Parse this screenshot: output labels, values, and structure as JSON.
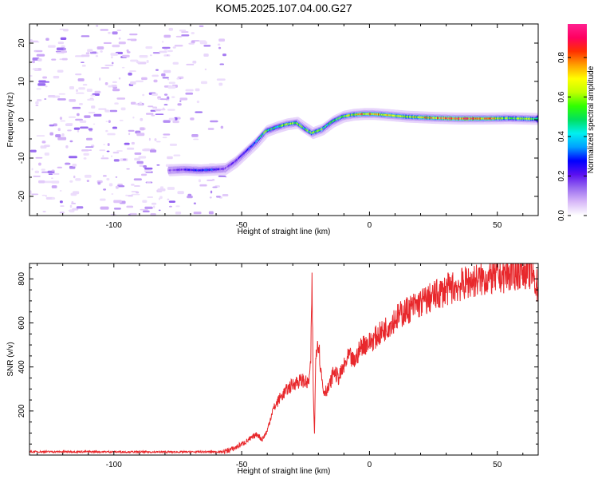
{
  "title": "KOM5.2025.107.04.00.G27",
  "chart_data": [
    {
      "type": "heatmap",
      "xlabel": "Height of straight line (km)",
      "ylabel": "Frequency (Hz)",
      "xlim": [
        -133,
        66
      ],
      "ylim": [
        -25,
        25
      ],
      "xticks": [
        -100,
        -50,
        0,
        50
      ],
      "yticks": [
        -20,
        -10,
        0,
        10,
        20
      ],
      "colorbar": {
        "label": "Normalized spectral amplitude",
        "range": [
          0,
          0.97
        ],
        "ticks": [
          0.0,
          0.2,
          0.4,
          0.6,
          0.8
        ],
        "colors": [
          "#ffffff",
          "#d8b8f8",
          "#9a6cf0",
          "#5a10f0",
          "#0000ff",
          "#00a0ff",
          "#00f0f0",
          "#00e060",
          "#30ff00",
          "#c0ff00",
          "#ffff00",
          "#ffa000",
          "#ff3000",
          "#ff0060",
          "#ff2090"
        ]
      },
      "ridge": {
        "x": [
          -78,
          -72,
          -66,
          -60,
          -56,
          -52,
          -48,
          -44,
          -40,
          -36,
          -32,
          -28,
          -25,
          -22,
          -18,
          -14,
          -10,
          -6,
          -2,
          2,
          8,
          15,
          25,
          35,
          45,
          55,
          66
        ],
        "freq": [
          -13.2,
          -13,
          -13.2,
          -13,
          -12.8,
          -11,
          -8.5,
          -6,
          -3,
          -2,
          -1.2,
          -0.8,
          -2.2,
          -3.5,
          -2.5,
          -0.5,
          0.8,
          1.3,
          1.5,
          1.5,
          1.2,
          0.8,
          0.5,
          0.3,
          0.3,
          0.4,
          0.2
        ],
        "amp": [
          0.15,
          0.22,
          0.3,
          0.28,
          0.18,
          0.2,
          0.25,
          0.35,
          0.55,
          0.45,
          0.62,
          0.55,
          0.5,
          0.58,
          0.6,
          0.5,
          0.55,
          0.65,
          0.78,
          0.72,
          0.68,
          0.62,
          0.75,
          0.9,
          0.8,
          0.6,
          0.55
        ]
      },
      "noise_region": {
        "x_from": -133,
        "x_to": -56,
        "freq_from": -25,
        "freq_to": 25
      }
    },
    {
      "type": "line",
      "xlabel": "Height of straight line (km)",
      "ylabel": "SNR (v/v)",
      "xlim": [
        -133,
        66
      ],
      "ylim": [
        0,
        870
      ],
      "xticks": [
        -100,
        -50,
        0,
        50
      ],
      "yticks": [
        200,
        400,
        600,
        800
      ],
      "series": [
        {
          "color": "#e8282c",
          "x": [
            -133,
            -110,
            -90,
            -70,
            -57,
            -53,
            -50,
            -47,
            -44,
            -42,
            -40,
            -38,
            -35,
            -32,
            -29,
            -26,
            -24,
            -23,
            -22.5,
            -22,
            -21.5,
            -21,
            -20,
            -19,
            -18,
            -16,
            -14,
            -12,
            -10,
            -8,
            -6,
            -3,
            0,
            5,
            10,
            15,
            20,
            25,
            30,
            35,
            40,
            45,
            50,
            55,
            60,
            63,
            66
          ],
          "y": [
            15,
            15,
            14,
            14,
            15,
            30,
            50,
            70,
            95,
            70,
            110,
            200,
            260,
            300,
            330,
            340,
            320,
            400,
            790,
            300,
            85,
            480,
            520,
            380,
            290,
            300,
            380,
            350,
            400,
            450,
            420,
            500,
            510,
            560,
            620,
            660,
            690,
            720,
            750,
            770,
            790,
            800,
            810,
            820,
            840,
            830,
            760
          ]
        }
      ]
    }
  ]
}
